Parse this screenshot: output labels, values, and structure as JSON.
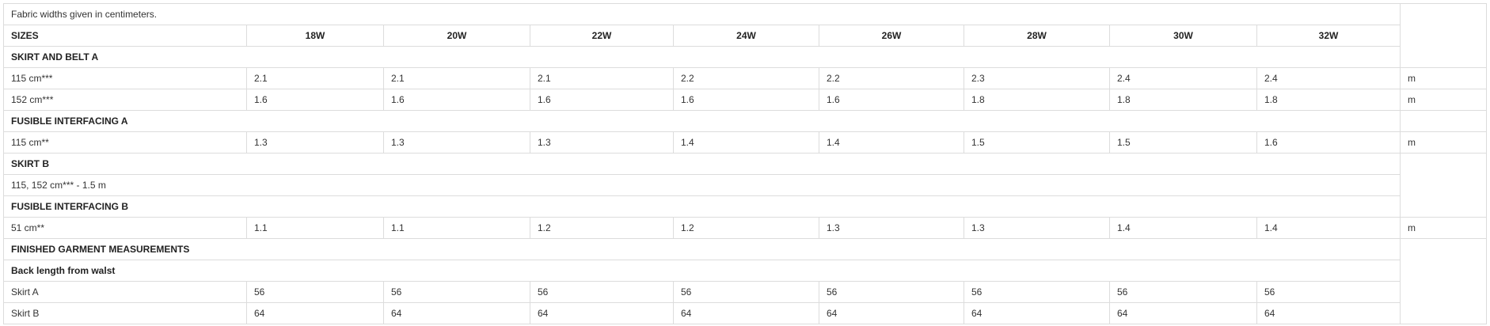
{
  "note": "Fabric widths given in centimeters.",
  "sizes_label": "SIZES",
  "sizes": [
    "18W",
    "20W",
    "22W",
    "24W",
    "26W",
    "28W",
    "30W",
    "32W"
  ],
  "rows": [
    {
      "type": "section",
      "label": "SKIRT AND BELT A"
    },
    {
      "type": "data",
      "label": "115 cm***",
      "values": [
        "2.1",
        "2.1",
        "2.1",
        "2.2",
        "2.2",
        "2.3",
        "2.4",
        "2.4"
      ],
      "unit": "m"
    },
    {
      "type": "data",
      "label": "152 cm***",
      "values": [
        "1.6",
        "1.6",
        "1.6",
        "1.6",
        "1.6",
        "1.8",
        "1.8",
        "1.8"
      ],
      "unit": "m"
    },
    {
      "type": "section",
      "label": "FUSIBLE INTERFACING A"
    },
    {
      "type": "data",
      "label": "115 cm**",
      "values": [
        "1.3",
        "1.3",
        "1.3",
        "1.4",
        "1.4",
        "1.5",
        "1.5",
        "1.6"
      ],
      "unit": "m"
    },
    {
      "type": "section",
      "label": "SKIRT B"
    },
    {
      "type": "text",
      "label": "115, 152 cm*** - 1.5 m"
    },
    {
      "type": "section",
      "label": "FUSIBLE INTERFACING B"
    },
    {
      "type": "data",
      "label": "51 cm**",
      "values": [
        "1.1",
        "1.1",
        "1.2",
        "1.2",
        "1.3",
        "1.3",
        "1.4",
        "1.4"
      ],
      "unit": "m"
    },
    {
      "type": "section",
      "label": "FINISHED GARMENT MEASUREMENTS"
    },
    {
      "type": "section",
      "label": "Back length from walst"
    },
    {
      "type": "data",
      "label": "Skirt A",
      "values": [
        "56",
        "56",
        "56",
        "56",
        "56",
        "56",
        "56",
        "56"
      ]
    },
    {
      "type": "data",
      "label": "Skirt B",
      "values": [
        "64",
        "64",
        "64",
        "64",
        "64",
        "64",
        "64",
        "64"
      ]
    }
  ]
}
